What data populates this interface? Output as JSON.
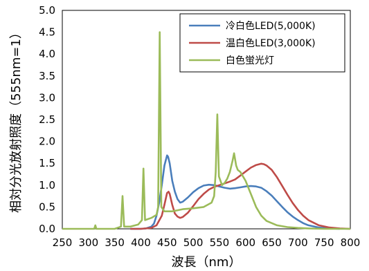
{
  "chart_data": {
    "type": "line",
    "title": "",
    "xlabel": "波長（nm）",
    "ylabel": "相対分光放射照度（555nm=1）",
    "xlim": [
      250,
      800
    ],
    "ylim": [
      0,
      5.0
    ],
    "xticks": [
      250,
      300,
      350,
      400,
      450,
      500,
      550,
      600,
      650,
      700,
      750,
      800
    ],
    "yticks": [
      0.0,
      0.5,
      1.0,
      1.5,
      2.0,
      2.5,
      3.0,
      3.5,
      4.0,
      4.5,
      5.0
    ],
    "xtick_labels": [
      "250",
      "300",
      "350",
      "400",
      "450",
      "500",
      "550",
      "600",
      "650",
      "700",
      "750",
      "800"
    ],
    "ytick_labels": [
      "0.0",
      "0.5",
      "1.0",
      "1.5",
      "2.0",
      "2.5",
      "3.0",
      "3.5",
      "4.0",
      "4.5",
      "5.0"
    ],
    "grid": false,
    "legend_position": "top-right",
    "series": [
      {
        "name": "冷白色LED(5,000K)",
        "color": "#4a7ebb",
        "x": [
          380,
          400,
          410,
          420,
          425,
          430,
          435,
          440,
          445,
          450,
          452,
          455,
          460,
          465,
          470,
          475,
          480,
          490,
          500,
          510,
          520,
          530,
          540,
          550,
          560,
          570,
          580,
          590,
          600,
          610,
          620,
          630,
          640,
          650,
          660,
          670,
          680,
          690,
          700,
          710,
          720,
          740,
          760,
          780
        ],
        "y": [
          0.0,
          0.0,
          0.01,
          0.05,
          0.12,
          0.3,
          0.6,
          1.0,
          1.45,
          1.68,
          1.65,
          1.5,
          1.1,
          0.85,
          0.68,
          0.6,
          0.62,
          0.72,
          0.84,
          0.93,
          0.99,
          1.01,
          1.0,
          0.97,
          0.94,
          0.92,
          0.93,
          0.95,
          0.97,
          0.98,
          0.97,
          0.94,
          0.86,
          0.76,
          0.63,
          0.5,
          0.38,
          0.28,
          0.2,
          0.13,
          0.08,
          0.03,
          0.01,
          0.0
        ]
      },
      {
        "name": "温白色LED(3,000K)",
        "color": "#be4b48",
        "x": [
          380,
          400,
          420,
          430,
          440,
          445,
          450,
          453,
          455,
          460,
          465,
          470,
          475,
          480,
          490,
          500,
          510,
          520,
          530,
          540,
          550,
          560,
          570,
          580,
          590,
          600,
          610,
          620,
          630,
          635,
          640,
          650,
          660,
          670,
          680,
          690,
          700,
          710,
          720,
          740,
          760,
          780,
          800
        ],
        "y": [
          0.0,
          0.0,
          0.02,
          0.08,
          0.3,
          0.55,
          0.82,
          0.85,
          0.8,
          0.55,
          0.35,
          0.28,
          0.25,
          0.27,
          0.37,
          0.52,
          0.68,
          0.8,
          0.9,
          0.96,
          1.0,
          1.04,
          1.08,
          1.13,
          1.22,
          1.31,
          1.4,
          1.46,
          1.49,
          1.48,
          1.45,
          1.35,
          1.18,
          0.98,
          0.78,
          0.59,
          0.43,
          0.3,
          0.2,
          0.08,
          0.03,
          0.01,
          0.0
        ]
      },
      {
        "name": "白色蛍光灯",
        "color": "#9bbb59",
        "x": [
          250,
          300,
          311,
          313,
          315,
          350,
          362,
          365,
          368,
          380,
          395,
          402,
          405,
          408,
          420,
          430,
          433,
          436,
          439,
          445,
          460,
          480,
          500,
          520,
          535,
          540,
          543,
          546,
          549,
          555,
          560,
          565,
          570,
          575,
          578,
          582,
          585,
          590,
          600,
          610,
          620,
          630,
          640,
          660,
          680,
          700,
          720,
          750,
          800
        ],
        "y": [
          0.0,
          0.0,
          0.0,
          0.08,
          0.0,
          0.0,
          0.05,
          0.75,
          0.05,
          0.05,
          0.1,
          0.2,
          1.38,
          0.2,
          0.25,
          0.32,
          0.5,
          4.5,
          0.5,
          0.4,
          0.4,
          0.45,
          0.47,
          0.5,
          0.6,
          0.75,
          1.3,
          2.62,
          1.2,
          1.0,
          1.05,
          1.15,
          1.3,
          1.55,
          1.73,
          1.45,
          1.35,
          1.3,
          1.1,
          0.8,
          0.5,
          0.3,
          0.18,
          0.08,
          0.04,
          0.02,
          0.01,
          0.0,
          0.0
        ]
      }
    ]
  }
}
